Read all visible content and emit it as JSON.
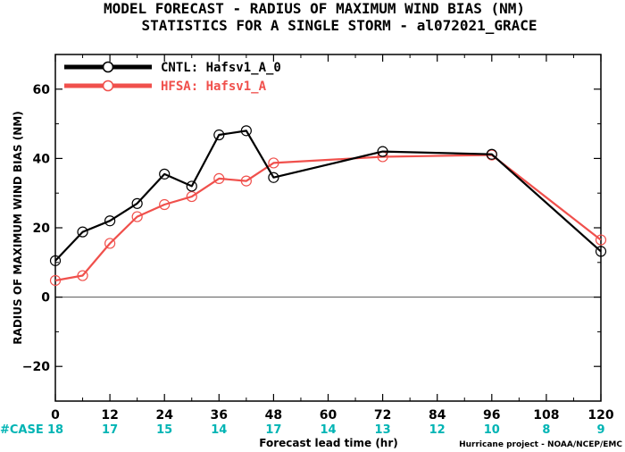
{
  "chart_data": {
    "type": "line",
    "title": "MODEL FORECAST - RADIUS OF MAXIMUM WIND BIAS (NM)",
    "subtitle": "STATISTICS FOR A SINGLE STORM - al072021_GRACE",
    "xlabel": "Forecast lead time (hr)",
    "ylabel": "RADIUS OF MAXIMUM WIND BIAS (NM)",
    "xlim": [
      0,
      120
    ],
    "ylim": [
      -30,
      70
    ],
    "xticks": [
      0,
      12,
      24,
      36,
      48,
      60,
      72,
      84,
      96,
      108,
      120
    ],
    "yticks": [
      -20,
      0,
      20,
      40,
      60
    ],
    "grid": false,
    "legend_position": "top-left",
    "series": [
      {
        "name": "CNTL: Hafsv1_A_0",
        "color": "#000000",
        "x": [
          0,
          6,
          12,
          18,
          24,
          30,
          36,
          42,
          48,
          72,
          96,
          120
        ],
        "y": [
          10.5,
          18.8,
          22.0,
          27.0,
          35.5,
          32.0,
          46.8,
          48.0,
          34.5,
          42.0,
          41.2,
          13.2
        ]
      },
      {
        "name": "HFSA: Hafsv1_A",
        "color": "#f0504c",
        "x": [
          0,
          6,
          12,
          18,
          24,
          30,
          36,
          42,
          48,
          72,
          96,
          120
        ],
        "y": [
          4.8,
          6.2,
          15.5,
          23.2,
          26.7,
          29.0,
          34.2,
          33.5,
          38.7,
          40.5,
          41.0,
          16.5
        ]
      }
    ],
    "case_label": "#CASE",
    "case_color": "#00b4b4",
    "cases": [
      {
        "x": 0,
        "n": "18"
      },
      {
        "x": 12,
        "n": "17"
      },
      {
        "x": 24,
        "n": "15"
      },
      {
        "x": 36,
        "n": "14"
      },
      {
        "x": 48,
        "n": "17"
      },
      {
        "x": 60,
        "n": "14"
      },
      {
        "x": 72,
        "n": "13"
      },
      {
        "x": 84,
        "n": "12"
      },
      {
        "x": 96,
        "n": "10"
      },
      {
        "x": 108,
        "n": "8"
      },
      {
        "x": 120,
        "n": "9"
      }
    ],
    "credit": "Hurricane project - NOAA/NCEP/EMC"
  }
}
